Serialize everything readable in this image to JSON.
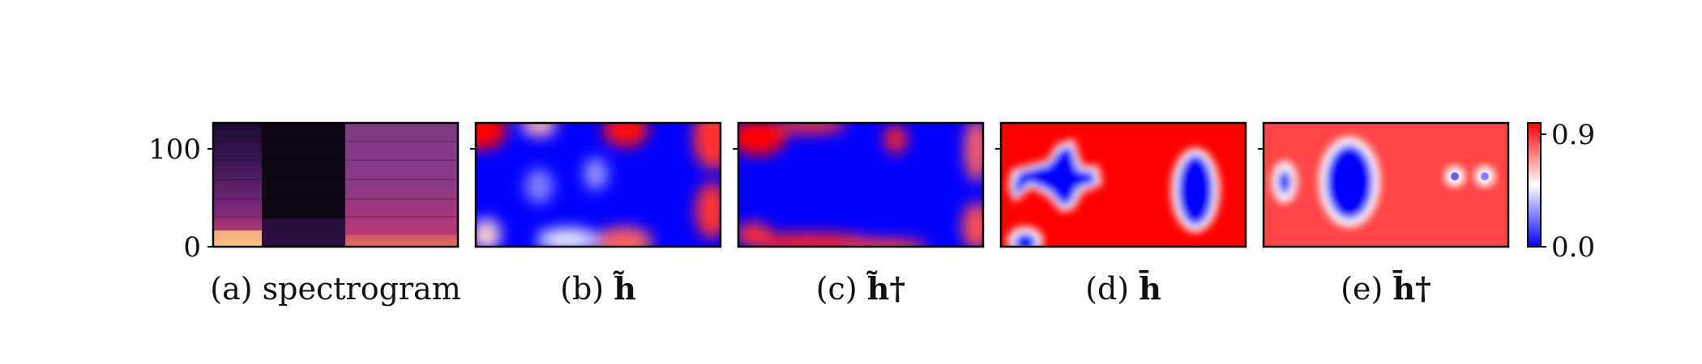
{
  "chart_data": [
    {
      "type": "heatmap",
      "panel": "a",
      "caption": "(a) spectrogram",
      "caption_prefix": "(a)",
      "caption_symbol": "spectrogram",
      "colormap": "magma",
      "y_ticks": [
        0,
        100
      ],
      "ylim": [
        0,
        127
      ],
      "description_regions": [
        {
          "x_range": [
            0.0,
            0.2
          ],
          "level": "medium"
        },
        {
          "x_range": [
            0.2,
            0.53
          ],
          "level": "low"
        },
        {
          "x_range": [
            0.53,
            1.0
          ],
          "level": "medium-high"
        }
      ]
    },
    {
      "type": "heatmap",
      "panel": "b",
      "caption": "(b) h̃",
      "caption_prefix": "(b)",
      "caption_symbol": "h̃",
      "colormap": "bwr",
      "clim": [
        0.0,
        0.9
      ]
    },
    {
      "type": "heatmap",
      "panel": "c",
      "caption": "(c) h̃†",
      "caption_prefix": "(c)",
      "caption_symbol": "h̃†",
      "colormap": "bwr",
      "clim": [
        0.0,
        0.9
      ]
    },
    {
      "type": "heatmap",
      "panel": "d",
      "caption": "(d) h̄",
      "caption_prefix": "(d)",
      "caption_symbol": "h̄",
      "colormap": "bwr",
      "clim": [
        0.0,
        0.9
      ]
    },
    {
      "type": "heatmap",
      "panel": "e",
      "caption": "(e) h̄†",
      "caption_prefix": "(e)",
      "caption_symbol": "h̄†",
      "colormap": "bwr",
      "clim": [
        0.0,
        0.9
      ]
    }
  ],
  "colorbar": {
    "colormap": "bwr",
    "min": 0.0,
    "max": 0.9,
    "tick_labels": [
      "0.9",
      "0.0"
    ],
    "colors": {
      "high": "#ff0000",
      "mid": "#ffffff",
      "low": "#0000ff"
    }
  }
}
